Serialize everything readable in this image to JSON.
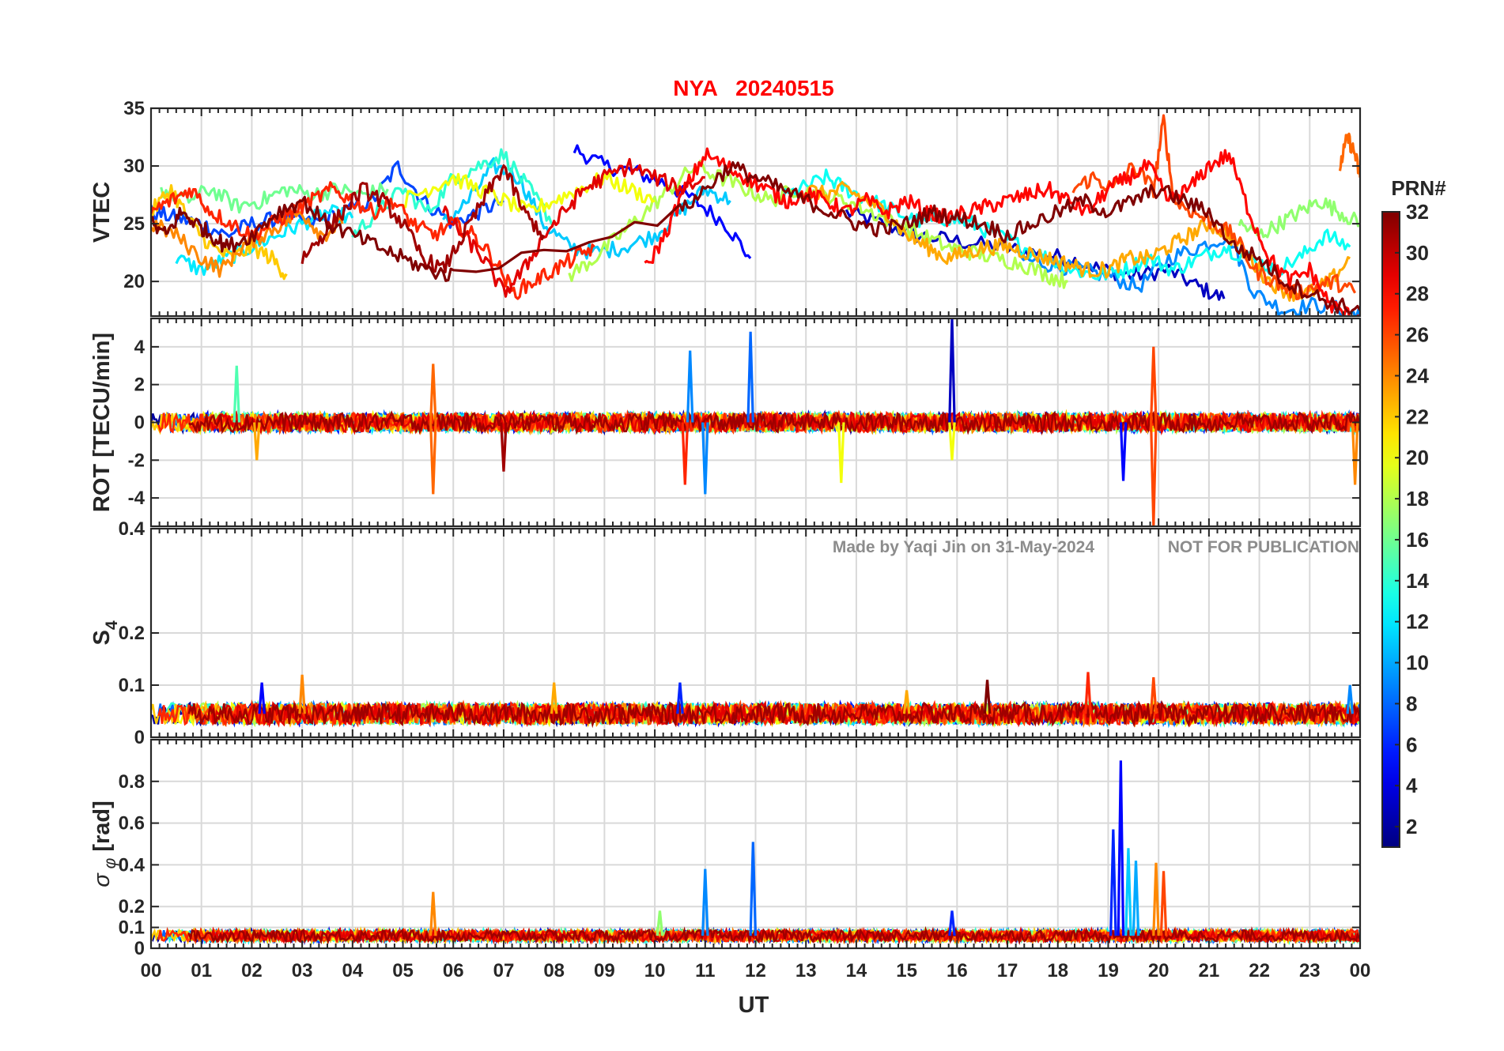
{
  "title": "NYA   20240515",
  "title_color": "#ff0000",
  "watermark_left": "Made by Yaqi Jin on 31-May-2024",
  "watermark_right": "NOT FOR PUBLICATION",
  "xlabel": "UT",
  "x_ticks": [
    "00",
    "01",
    "02",
    "03",
    "04",
    "05",
    "06",
    "07",
    "08",
    "09",
    "10",
    "11",
    "12",
    "13",
    "14",
    "15",
    "16",
    "17",
    "18",
    "19",
    "20",
    "21",
    "22",
    "23",
    "00"
  ],
  "colorbar": {
    "title": "PRN#",
    "colormap": "jet",
    "range": [
      1,
      32
    ],
    "tick_labels": [
      "2",
      "4",
      "6",
      "8",
      "10",
      "12",
      "14",
      "16",
      "18",
      "20",
      "22",
      "24",
      "26",
      "28",
      "30",
      "32"
    ],
    "tick_values": [
      2,
      4,
      6,
      8,
      10,
      12,
      14,
      16,
      18,
      20,
      22,
      24,
      26,
      28,
      30,
      32
    ]
  },
  "chart_data": [
    {
      "type": "line",
      "panel": "VTEC",
      "ylabel": "VTEC",
      "ylim": [
        17,
        35
      ],
      "y_tick_values": [
        20,
        25,
        30,
        35
      ],
      "y_tick_labels": [
        "20",
        "25",
        "30",
        "35"
      ],
      "grid": true,
      "x_unit": "hours UT",
      "series": [
        {
          "prn": 3,
          "x": [
            13.8,
            14.5,
            15.2,
            16.0,
            16.8,
            17.5,
            18.2,
            18.9,
            19.5,
            20.2,
            20.8,
            21.3
          ],
          "y": [
            26,
            25,
            24,
            23.5,
            23,
            22.5,
            22,
            21,
            20.5,
            21,
            19.5,
            18.5
          ]
        },
        {
          "prn": 5,
          "x": [
            8.4,
            9.0,
            9.6,
            10.2,
            10.8,
            11.4,
            11.9
          ],
          "y": [
            31.5,
            30,
            29.5,
            28.5,
            27,
            25,
            22
          ]
        },
        {
          "prn": 7,
          "x": [
            0.0,
            0.5,
            1.0,
            1.5,
            2.0,
            2.6,
            3.2,
            3.8,
            4.4,
            4.9,
            5.4,
            6.0,
            6.5,
            7.0
          ],
          "y": [
            26,
            25.5,
            25,
            24,
            25,
            25.5,
            25,
            26,
            27,
            30,
            27,
            25,
            26,
            27
          ]
        },
        {
          "prn": 9,
          "x": [
            17.2,
            17.8,
            18.4,
            19.0,
            19.6,
            20.2,
            20.8,
            21.4,
            21.9,
            22.5,
            23.1,
            23.7,
            24.0
          ],
          "y": [
            22,
            21.5,
            21,
            20.5,
            19.5,
            22,
            23,
            24,
            19,
            17.5,
            18,
            17.5,
            17
          ]
        },
        {
          "prn": 11,
          "x": [
            5.8,
            6.3,
            6.8,
            7.3,
            7.8,
            8.3,
            8.8,
            9.4,
            10.0,
            10.5,
            11.0,
            11.5
          ],
          "y": [
            25,
            27,
            30,
            29,
            25,
            23,
            22.5,
            23,
            24,
            26,
            28,
            27
          ]
        },
        {
          "prn": 12,
          "x": [
            0.5,
            1.0,
            1.5,
            2.0,
            2.5,
            3.0,
            3.5,
            4.0
          ],
          "y": [
            22,
            21,
            22,
            23,
            24,
            25,
            26,
            25.5
          ]
        },
        {
          "prn": 13,
          "x": [
            12.4,
            12.9,
            13.4,
            13.8,
            14.3,
            14.8,
            15.3,
            15.8,
            16.3,
            16.8,
            17.3,
            17.8,
            18.3,
            18.8,
            19.3,
            19.8,
            20.3,
            20.8,
            21.3,
            21.8,
            22.3,
            22.8,
            23.3,
            23.8
          ],
          "y": [
            27,
            28,
            29,
            28,
            27,
            26,
            25,
            25.5,
            25,
            24,
            23,
            22,
            21,
            20.5,
            21,
            22,
            21,
            22,
            23,
            22,
            21,
            22,
            24,
            23
          ]
        },
        {
          "prn": 14,
          "x": [
            4.0,
            4.5,
            5.0,
            5.5,
            6.0,
            6.5,
            7.0,
            7.5,
            8.0
          ],
          "y": [
            24,
            26,
            28,
            26,
            29,
            30,
            31,
            28,
            25
          ]
        },
        {
          "prn": 16,
          "x": [
            0.2,
            0.7,
            1.2,
            1.7,
            2.2,
            2.7,
            3.2,
            3.7,
            4.2,
            4.7
          ],
          "y": [
            28,
            27,
            28,
            26.5,
            27,
            28,
            27.5,
            28,
            27.5,
            28
          ]
        },
        {
          "prn": 17,
          "x": [
            21.6,
            22.0,
            22.4,
            22.8,
            23.2,
            23.6,
            24.0
          ],
          "y": [
            25,
            24,
            25,
            26,
            27,
            26,
            25
          ]
        },
        {
          "prn": 18,
          "x": [
            8.3,
            8.8,
            9.3,
            9.8,
            10.3,
            10.8,
            11.3,
            11.8,
            12.3,
            12.8,
            13.3,
            13.8,
            14.3,
            14.8,
            15.3,
            15.8,
            16.3,
            16.8,
            17.3,
            17.8,
            18.2
          ],
          "y": [
            20.5,
            22,
            24,
            26,
            28,
            30,
            29,
            28,
            27,
            28,
            27.5,
            27,
            26,
            25,
            24,
            23,
            22.5,
            22,
            21.5,
            20.5,
            20
          ]
        },
        {
          "prn": 20,
          "x": [
            5.0,
            5.5,
            6.0,
            6.5,
            7.0,
            7.5,
            8.0,
            8.5,
            9.0,
            9.5,
            10.0
          ],
          "y": [
            27,
            28,
            29,
            28,
            27,
            26,
            27,
            28,
            29,
            28,
            27
          ]
        },
        {
          "prn": 22,
          "x": [
            0.0,
            0.4,
            0.8,
            1.2,
            1.6,
            2.0,
            2.4,
            2.7
          ],
          "y": [
            26,
            28,
            25,
            23,
            22,
            23,
            22,
            20.5
          ]
        },
        {
          "prn": 23,
          "x": [
            13.0,
            13.4,
            13.8,
            14.2,
            14.6,
            15.0,
            15.4,
            15.8,
            16.2,
            16.6,
            17.0,
            17.4,
            17.8,
            18.2,
            18.6,
            19.0,
            19.4,
            19.8,
            20.2,
            20.6,
            21.0,
            21.4,
            21.8,
            22.2,
            22.6,
            23.0,
            23.4,
            23.8
          ],
          "y": [
            28,
            27.5,
            28,
            27,
            26,
            24,
            23,
            22,
            22.5,
            23,
            23,
            22.5,
            22,
            21.5,
            21,
            21,
            22,
            22,
            23,
            24,
            25,
            24,
            22,
            20,
            19,
            19,
            20,
            22
          ]
        },
        {
          "prn": 24,
          "x": [
            0.0,
            0.5,
            1.0,
            1.4,
            1.8,
            2.2,
            2.6,
            3.0,
            3.4,
            3.8
          ],
          "y": [
            25,
            24,
            22,
            21,
            23,
            24,
            25,
            26,
            24,
            25
          ]
        },
        {
          "prn": 25,
          "x": [
            23.6,
            23.75,
            23.9,
            24.0
          ],
          "y": [
            30,
            32.5,
            31,
            29
          ]
        },
        {
          "prn": 26,
          "x": [
            18.3,
            18.7,
            19.1,
            19.5,
            19.9,
            20.1,
            20.3,
            20.7,
            21.1,
            21.5,
            21.9,
            22.3,
            22.7,
            23.1,
            23.5,
            23.9
          ],
          "y": [
            28,
            29,
            28,
            30,
            28,
            34,
            27,
            26,
            25,
            24,
            21,
            20,
            19,
            19.5,
            20,
            19
          ]
        },
        {
          "prn": 27,
          "x": [
            0.0,
            0.4,
            0.8,
            1.2,
            1.6,
            2.0,
            2.4,
            2.8,
            3.2,
            3.6,
            4.0,
            4.4,
            4.8,
            5.2,
            5.6,
            6.0,
            6.4,
            6.8,
            7.2,
            7.6,
            8.0,
            8.4,
            8.8
          ],
          "y": [
            26,
            27,
            28,
            26,
            25,
            24,
            25,
            26,
            27,
            28,
            27,
            26,
            27,
            25,
            24,
            25,
            24,
            22,
            19,
            20,
            21,
            22,
            23
          ]
        },
        {
          "prn": 28,
          "x": [
            9.8,
            10.2,
            10.6,
            11.0,
            11.4,
            11.8,
            12.2,
            12.6,
            13.0,
            13.4,
            13.8,
            14.2,
            14.6,
            15.0,
            15.4,
            15.8,
            16.2,
            16.6,
            17.0,
            17.4,
            17.8,
            18.2,
            18.6,
            19.0,
            19.4,
            19.8,
            20.2,
            20.6,
            21.0,
            21.4,
            21.8,
            22.2,
            22.6,
            23.0,
            23.4,
            23.8,
            24.0
          ],
          "y": [
            21,
            24,
            28,
            31,
            30,
            29,
            28,
            27,
            27.5,
            27,
            26,
            27,
            26,
            27,
            26,
            25.5,
            26,
            26.5,
            27,
            27.5,
            28,
            27,
            26,
            28,
            29,
            30,
            27,
            28,
            30,
            31,
            26,
            22,
            20,
            21,
            18,
            17,
            16.5
          ]
        },
        {
          "prn": 29,
          "x": [
            5.8,
            6.2,
            6.6,
            7.0,
            7.4,
            7.8,
            8.2,
            8.6,
            9.0,
            9.5,
            10.0,
            10.5,
            11.0
          ],
          "y": [
            26,
            24,
            22,
            19,
            21,
            24,
            26,
            28,
            29,
            30,
            29,
            28,
            29
          ]
        },
        {
          "prn": 31,
          "x": [
            3.0,
            3.4,
            3.8,
            4.2,
            4.6,
            5.0,
            5.4,
            5.8,
            6.2,
            6.6,
            7.0,
            7.4,
            7.8
          ],
          "y": [
            22,
            24,
            26,
            28,
            27,
            25,
            22,
            21,
            24,
            27,
            30,
            26,
            24
          ]
        },
        {
          "prn": 32,
          "x": [
            0.0,
            0.3,
            0.6,
            0.9,
            1.2,
            1.5,
            2.0,
            2.5,
            3.0,
            3.5,
            4.0,
            4.5,
            5.0,
            5.5,
            6.0,
            10.5,
            11.0,
            11.5,
            12.0,
            12.5,
            13.0,
            13.5,
            14.0,
            14.5,
            15.0,
            15.5,
            16.0,
            16.5,
            17.0,
            17.5,
            18.0,
            18.5,
            19.0,
            19.5,
            20.0,
            20.5,
            21.0,
            21.5,
            22.0,
            22.5,
            23.0,
            23.5,
            24.0
          ],
          "y": [
            25,
            24,
            26,
            25,
            24,
            23,
            24,
            26,
            27,
            25,
            24,
            23,
            22,
            21,
            20.5,
            26,
            28,
            30,
            29,
            28,
            27,
            26,
            25,
            24.5,
            25,
            26,
            25.5,
            25,
            24,
            25,
            26,
            27,
            26,
            27,
            28,
            27,
            26,
            23,
            22,
            20,
            19,
            18,
            17.5
          ]
        }
      ]
    },
    {
      "type": "line",
      "panel": "ROT",
      "ylabel": "ROT [TECU/min]",
      "ylim": [
        -5.5,
        5.5
      ],
      "y_tick_values": [
        -4,
        -2,
        0,
        2,
        4
      ],
      "y_tick_labels": [
        "-4",
        "-2",
        "0",
        "2",
        "4"
      ],
      "grid": true,
      "noise_amplitude": 0.5,
      "spikes": [
        {
          "x": 1.7,
          "y": 3.0,
          "prn": 15
        },
        {
          "x": 2.1,
          "y": -2.0,
          "prn": 23
        },
        {
          "x": 5.6,
          "y": 3.1,
          "prn": 25
        },
        {
          "x": 5.6,
          "y": -3.8,
          "prn": 25
        },
        {
          "x": 7.0,
          "y": -2.6,
          "prn": 31
        },
        {
          "x": 10.7,
          "y": 3.8,
          "prn": 9
        },
        {
          "x": 11.0,
          "y": -3.8,
          "prn": 9
        },
        {
          "x": 11.9,
          "y": 4.8,
          "prn": 8
        },
        {
          "x": 10.6,
          "y": -3.3,
          "prn": 27
        },
        {
          "x": 13.7,
          "y": -3.2,
          "prn": 20
        },
        {
          "x": 15.9,
          "y": 5.5,
          "prn": 3
        },
        {
          "x": 15.9,
          "y": -2.0,
          "prn": 20
        },
        {
          "x": 19.3,
          "y": -3.1,
          "prn": 5
        },
        {
          "x": 19.9,
          "y": 4.0,
          "prn": 26
        },
        {
          "x": 19.9,
          "y": -5.5,
          "prn": 26
        },
        {
          "x": 23.9,
          "y": -3.3,
          "prn": 24
        }
      ],
      "baseline_y": 0
    },
    {
      "type": "line",
      "panel": "S4",
      "ylabel": "S4",
      "ylim": [
        0,
        0.4
      ],
      "y_tick_values": [
        0,
        0.1,
        0.2,
        0.4
      ],
      "y_tick_labels": [
        "0",
        "0.1",
        "0.2",
        "0.4"
      ],
      "grid": true,
      "baseline_y": 0.045,
      "spikes": [
        {
          "x": 2.2,
          "y": 0.105,
          "prn": 5
        },
        {
          "x": 3.0,
          "y": 0.12,
          "prn": 24
        },
        {
          "x": 8.0,
          "y": 0.105,
          "prn": 23
        },
        {
          "x": 10.5,
          "y": 0.105,
          "prn": 6
        },
        {
          "x": 15.0,
          "y": 0.09,
          "prn": 23
        },
        {
          "x": 16.6,
          "y": 0.11,
          "prn": 32
        },
        {
          "x": 18.6,
          "y": 0.125,
          "prn": 27
        },
        {
          "x": 19.9,
          "y": 0.115,
          "prn": 26
        },
        {
          "x": 23.8,
          "y": 0.1,
          "prn": 9
        }
      ]
    },
    {
      "type": "line",
      "panel": "SigmaPhi",
      "ylabel": "σ_φ [rad]",
      "ylim": [
        0,
        1.0
      ],
      "y_tick_values": [
        0,
        0.1,
        0.2,
        0.4,
        0.6,
        0.8
      ],
      "y_tick_labels": [
        "0",
        "0.1",
        "0.2",
        "0.4",
        "0.6",
        "0.8"
      ],
      "grid": true,
      "baseline_y": 0.06,
      "spikes": [
        {
          "x": 5.6,
          "y": 0.27,
          "prn": 24
        },
        {
          "x": 11.0,
          "y": 0.38,
          "prn": 9
        },
        {
          "x": 11.95,
          "y": 0.51,
          "prn": 8
        },
        {
          "x": 10.1,
          "y": 0.18,
          "prn": 17
        },
        {
          "x": 15.9,
          "y": 0.18,
          "prn": 6
        },
        {
          "x": 19.1,
          "y": 0.57,
          "prn": 6
        },
        {
          "x": 19.25,
          "y": 0.9,
          "prn": 5
        },
        {
          "x": 19.4,
          "y": 0.48,
          "prn": 11
        },
        {
          "x": 19.55,
          "y": 0.42,
          "prn": 10
        },
        {
          "x": 19.95,
          "y": 0.41,
          "prn": 24
        },
        {
          "x": 20.1,
          "y": 0.37,
          "prn": 26
        }
      ]
    }
  ]
}
